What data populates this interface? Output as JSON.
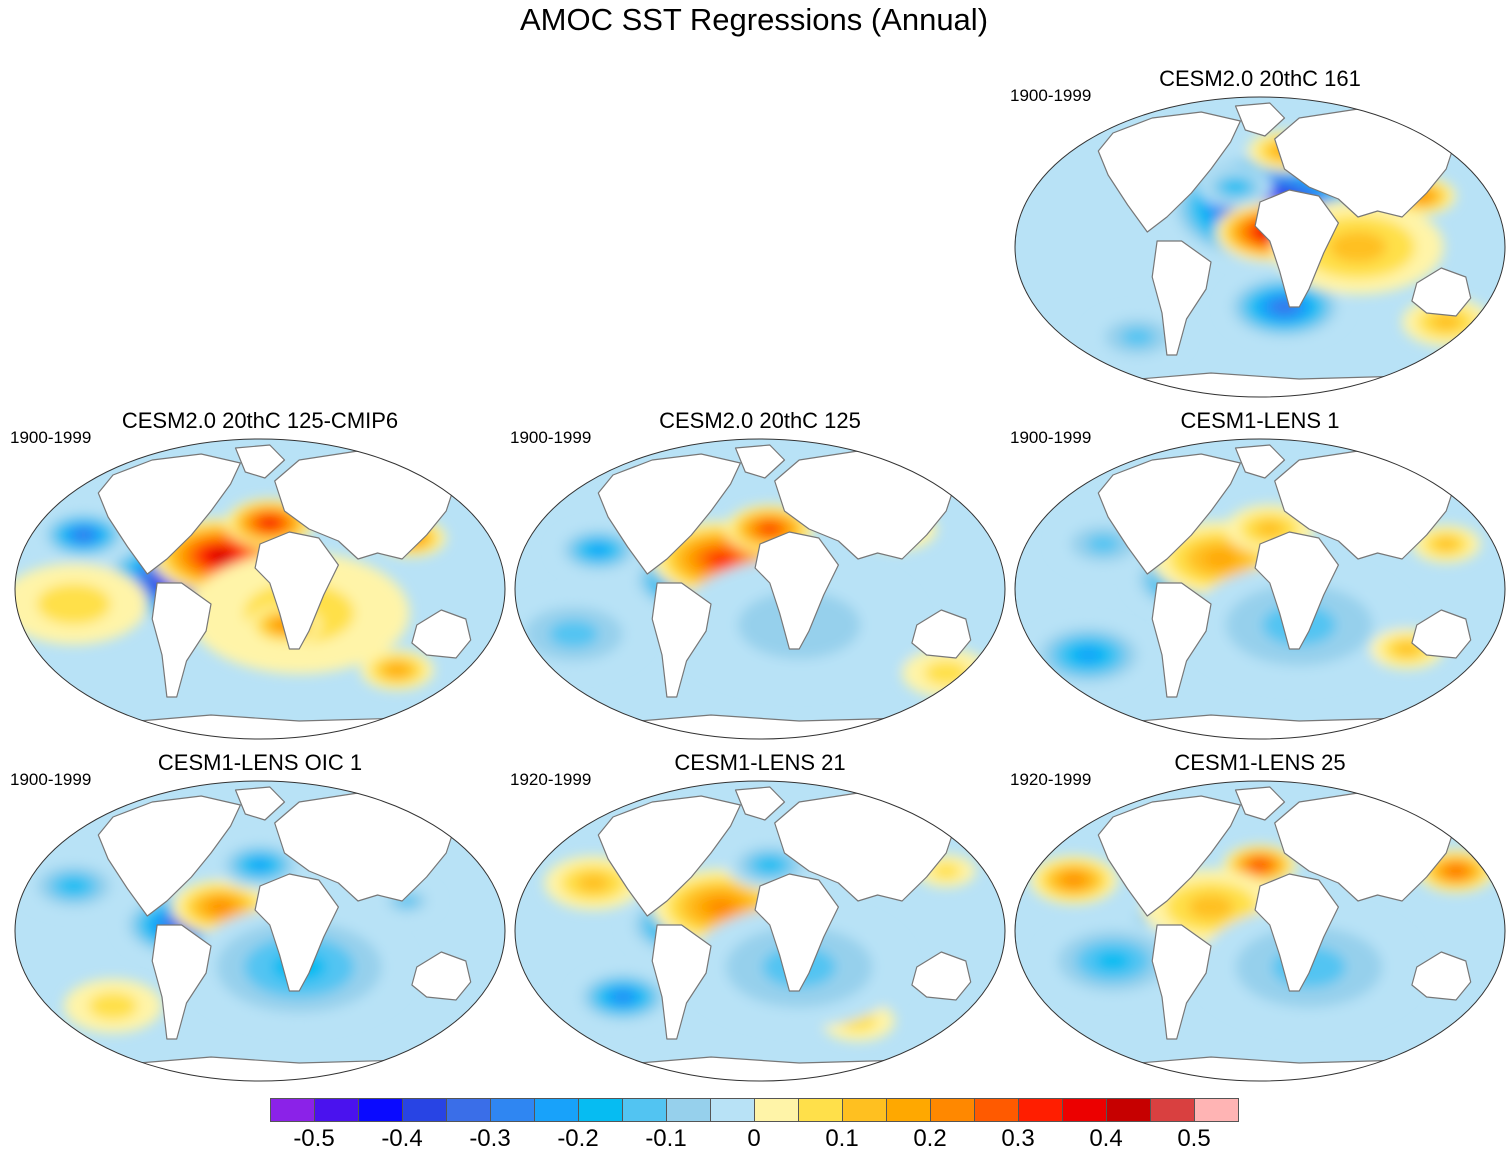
{
  "title": "AMOC SST Regressions (Annual)",
  "panels": [
    {
      "id": "p161",
      "title": "CESM2.0 20thC 161",
      "period": "1900-1999",
      "anoms": [
        [
          -0.35,
          0.55,
          0.7,
          0.25
        ],
        [
          -0.55,
          0.52,
          0.37,
          0.42
        ],
        [
          0.45,
          0.52,
          0.45,
          0.22
        ],
        [
          -0.45,
          0.06,
          0.92,
          0.16
        ],
        [
          0.15,
          0.7,
          0.5,
          0.35
        ],
        [
          0.25,
          0.83,
          0.33,
          0.14
        ],
        [
          0.2,
          0.55,
          0.18,
          0.15
        ],
        [
          -0.15,
          0.25,
          0.8,
          0.2
        ],
        [
          -0.2,
          0.45,
          0.3,
          0.15
        ],
        [
          0.15,
          0.88,
          0.75,
          0.18
        ]
      ]
    },
    {
      "id": "p125cmip6",
      "title": "CESM2.0 20thC 125-CMIP6",
      "period": "1900-1999",
      "anoms": [
        [
          -0.35,
          0.14,
          0.32,
          0.18
        ],
        [
          -0.55,
          0.34,
          0.47,
          0.33
        ],
        [
          0.45,
          0.42,
          0.39,
          0.28
        ],
        [
          0.4,
          0.52,
          0.28,
          0.18
        ],
        [
          0.1,
          0.58,
          0.58,
          0.45
        ],
        [
          0.25,
          0.81,
          0.33,
          0.14
        ],
        [
          0.25,
          0.55,
          0.62,
          0.15
        ],
        [
          0.15,
          0.07,
          0.92,
          0.15
        ],
        [
          0.2,
          0.78,
          0.77,
          0.15
        ],
        [
          0.1,
          0.12,
          0.55,
          0.3
        ]
      ]
    },
    {
      "id": "p125",
      "title": "CESM2.0 20thC 125",
      "period": "1900-1999",
      "anoms": [
        [
          -0.25,
          0.17,
          0.37,
          0.18
        ],
        [
          -0.4,
          0.36,
          0.47,
          0.25
        ],
        [
          0.35,
          0.42,
          0.4,
          0.28
        ],
        [
          0.35,
          0.52,
          0.3,
          0.18
        ],
        [
          -0.1,
          0.58,
          0.62,
          0.5
        ],
        [
          0.1,
          0.78,
          0.3,
          0.16
        ],
        [
          0.1,
          0.88,
          0.78,
          0.18
        ],
        [
          -0.15,
          0.12,
          0.65,
          0.3
        ]
      ]
    },
    {
      "id": "lens1",
      "title": "CESM1-LENS 1",
      "period": "1900-1999",
      "anoms": [
        [
          -0.15,
          0.18,
          0.35,
          0.2
        ],
        [
          -0.35,
          0.36,
          0.47,
          0.25
        ],
        [
          0.2,
          0.42,
          0.4,
          0.28
        ],
        [
          0.15,
          0.52,
          0.3,
          0.18
        ],
        [
          0.15,
          0.88,
          0.35,
          0.14
        ],
        [
          -0.15,
          0.58,
          0.62,
          0.45
        ],
        [
          -0.25,
          0.15,
          0.72,
          0.25
        ],
        [
          0.15,
          0.8,
          0.7,
          0.15
        ]
      ]
    },
    {
      "id": "lensoic1",
      "title": "CESM1-LENS OIC 1",
      "period": "1900-1999",
      "anoms": [
        [
          -0.2,
          0.12,
          0.35,
          0.2
        ],
        [
          -0.4,
          0.34,
          0.48,
          0.25
        ],
        [
          0.25,
          0.42,
          0.42,
          0.2
        ],
        [
          -0.25,
          0.5,
          0.28,
          0.18
        ],
        [
          -0.2,
          0.58,
          0.62,
          0.45
        ],
        [
          0.1,
          0.2,
          0.75,
          0.2
        ],
        [
          -0.15,
          0.8,
          0.4,
          0.12
        ]
      ]
    },
    {
      "id": "lens21",
      "title": "CESM1-LENS 21",
      "period": "1920-1999",
      "anoms": [
        [
          0.15,
          0.16,
          0.34,
          0.2
        ],
        [
          -0.35,
          0.35,
          0.48,
          0.25
        ],
        [
          0.25,
          0.42,
          0.42,
          0.28
        ],
        [
          -0.2,
          0.52,
          0.28,
          0.18
        ],
        [
          -0.3,
          0.22,
          0.72,
          0.2
        ],
        [
          0.1,
          0.7,
          0.8,
          0.15
        ],
        [
          -0.15,
          0.58,
          0.62,
          0.45
        ],
        [
          0.1,
          0.88,
          0.3,
          0.12
        ]
      ]
    },
    {
      "id": "lens25",
      "title": "CESM1-LENS 25",
      "period": "1920-1999",
      "anoms": [
        [
          0.25,
          0.12,
          0.33,
          0.18
        ],
        [
          0.3,
          0.9,
          0.3,
          0.16
        ],
        [
          -0.3,
          0.35,
          0.47,
          0.25
        ],
        [
          0.35,
          0.5,
          0.28,
          0.15
        ],
        [
          0.15,
          0.4,
          0.42,
          0.28
        ],
        [
          -0.2,
          0.2,
          0.6,
          0.3
        ],
        [
          -0.15,
          0.6,
          0.62,
          0.45
        ]
      ]
    }
  ],
  "colorbar": {
    "colors": [
      "#8b22e8",
      "#4a12ee",
      "#0a0aff",
      "#2844e4",
      "#3a6ee8",
      "#2f86f2",
      "#18a2fa",
      "#06bcf2",
      "#52c4f2",
      "#96d0ec",
      "#b8e2f6",
      "#fff4a8",
      "#ffe04a",
      "#ffc020",
      "#ffa800",
      "#ff8800",
      "#ff5a00",
      "#ff1e00",
      "#ec0000",
      "#c60000",
      "#d94040",
      "#ffb4b4"
    ],
    "labels": [
      "-0.5",
      "-0.4",
      "-0.3",
      "-0.2",
      "-0.1",
      "0",
      "0.1",
      "0.2",
      "0.3",
      "0.4",
      "0.5"
    ],
    "label_values": [
      -0.5,
      -0.4,
      -0.3,
      -0.2,
      -0.1,
      0,
      0.1,
      0.2,
      0.3,
      0.4,
      0.5
    ]
  }
}
